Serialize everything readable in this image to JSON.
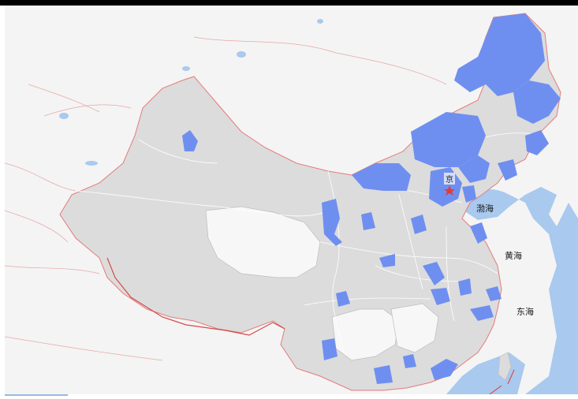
{
  "map": {
    "labels": {
      "bohai": "渤海",
      "huanghai": "黄海",
      "donghai": "东海",
      "capital": "京"
    },
    "colors": {
      "land_bg": "#f4f4f4",
      "sea": "#a9c9ee",
      "china_fill": "#dcdcdc",
      "highlight": "#6f8ff0",
      "border_intl": "#e47b7b",
      "border_internal": "#ffffff",
      "star": "#e23b3b"
    },
    "icons": [
      "capital-star-icon"
    ]
  }
}
